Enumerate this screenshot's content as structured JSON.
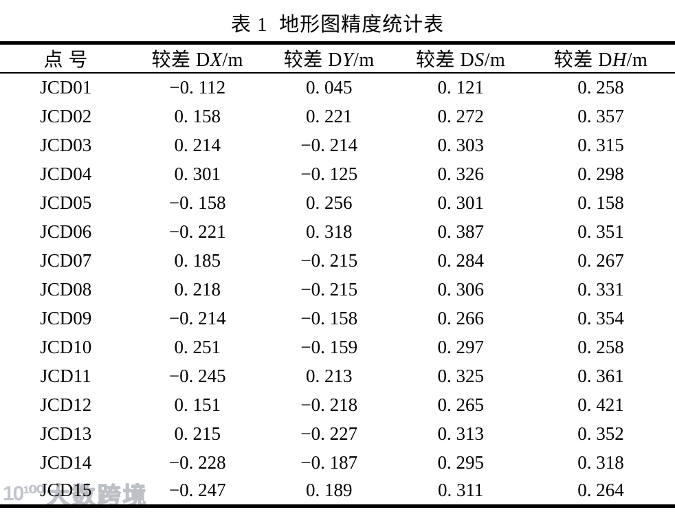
{
  "title": "表 1  地形图精度统计表",
  "watermark": {
    "logo": "10¹⁰⁰",
    "text": "大数跨境"
  },
  "table": {
    "columns": [
      {
        "label_prefix": "点 号",
        "label_italic": "",
        "label_suffix": ""
      },
      {
        "label_prefix": "较差 D",
        "label_italic": "X",
        "label_suffix": "/m"
      },
      {
        "label_prefix": "较差 D",
        "label_italic": "Y",
        "label_suffix": "/m"
      },
      {
        "label_prefix": "较差 D",
        "label_italic": "S",
        "label_suffix": "/m"
      },
      {
        "label_prefix": "较差 D",
        "label_italic": "H",
        "label_suffix": "/m"
      }
    ],
    "rows": [
      [
        "JCD01",
        "−0. 112",
        "0. 045",
        "0. 121",
        "0. 258"
      ],
      [
        "JCD02",
        "0. 158",
        "0. 221",
        "0. 272",
        "0. 357"
      ],
      [
        "JCD03",
        "0. 214",
        "−0. 214",
        "0. 303",
        "0. 315"
      ],
      [
        "JCD04",
        "0. 301",
        "−0. 125",
        "0. 326",
        "0. 298"
      ],
      [
        "JCD05",
        "−0. 158",
        "0. 256",
        "0. 301",
        "0. 158"
      ],
      [
        "JCD06",
        "−0. 221",
        "0. 318",
        "0. 387",
        "0. 351"
      ],
      [
        "JCD07",
        "0. 185",
        "−0. 215",
        "0. 284",
        "0. 267"
      ],
      [
        "JCD08",
        "0. 218",
        "−0. 215",
        "0. 306",
        "0. 331"
      ],
      [
        "JCD09",
        "−0. 214",
        "−0. 158",
        "0. 266",
        "0. 354"
      ],
      [
        "JCD10",
        "0. 251",
        "−0. 159",
        "0. 297",
        "0. 258"
      ],
      [
        "JCD11",
        "−0. 245",
        "0. 213",
        "0. 325",
        "0. 361"
      ],
      [
        "JCD12",
        "0. 151",
        "−0. 218",
        "0. 265",
        "0. 421"
      ],
      [
        "JCD13",
        "0. 215",
        "−0. 227",
        "0. 313",
        "0. 352"
      ],
      [
        "JCD14",
        "−0. 228",
        "−0. 187",
        "0. 295",
        "0. 318"
      ],
      [
        "JCD15",
        "−0. 247",
        "0. 189",
        "0. 311",
        "0. 264"
      ]
    ]
  }
}
